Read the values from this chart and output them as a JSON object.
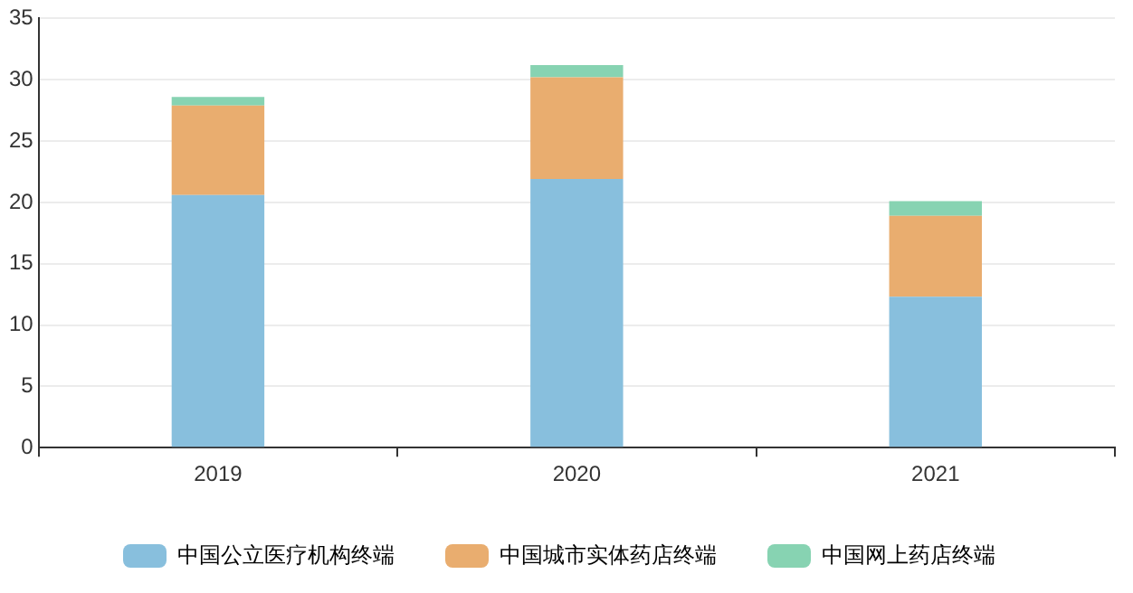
{
  "chart_data": {
    "type": "bar",
    "stacked": true,
    "categories": [
      "2019",
      "2020",
      "2021"
    ],
    "series": [
      {
        "name": "中国公立医疗机构终端",
        "color": "#88bfdd",
        "values": [
          20.6,
          21.9,
          12.3
        ]
      },
      {
        "name": "中国城市实体药店终端",
        "color": "#e9ad6f",
        "values": [
          7.3,
          8.3,
          6.6
        ]
      },
      {
        "name": "中国网上药店终端",
        "color": "#87d3b2",
        "values": [
          0.7,
          1.0,
          1.2
        ]
      }
    ],
    "ylim": [
      0,
      35
    ],
    "yticks": [
      0,
      5,
      10,
      15,
      20,
      25,
      30,
      35
    ],
    "grid": "y",
    "legend": "bottom"
  }
}
